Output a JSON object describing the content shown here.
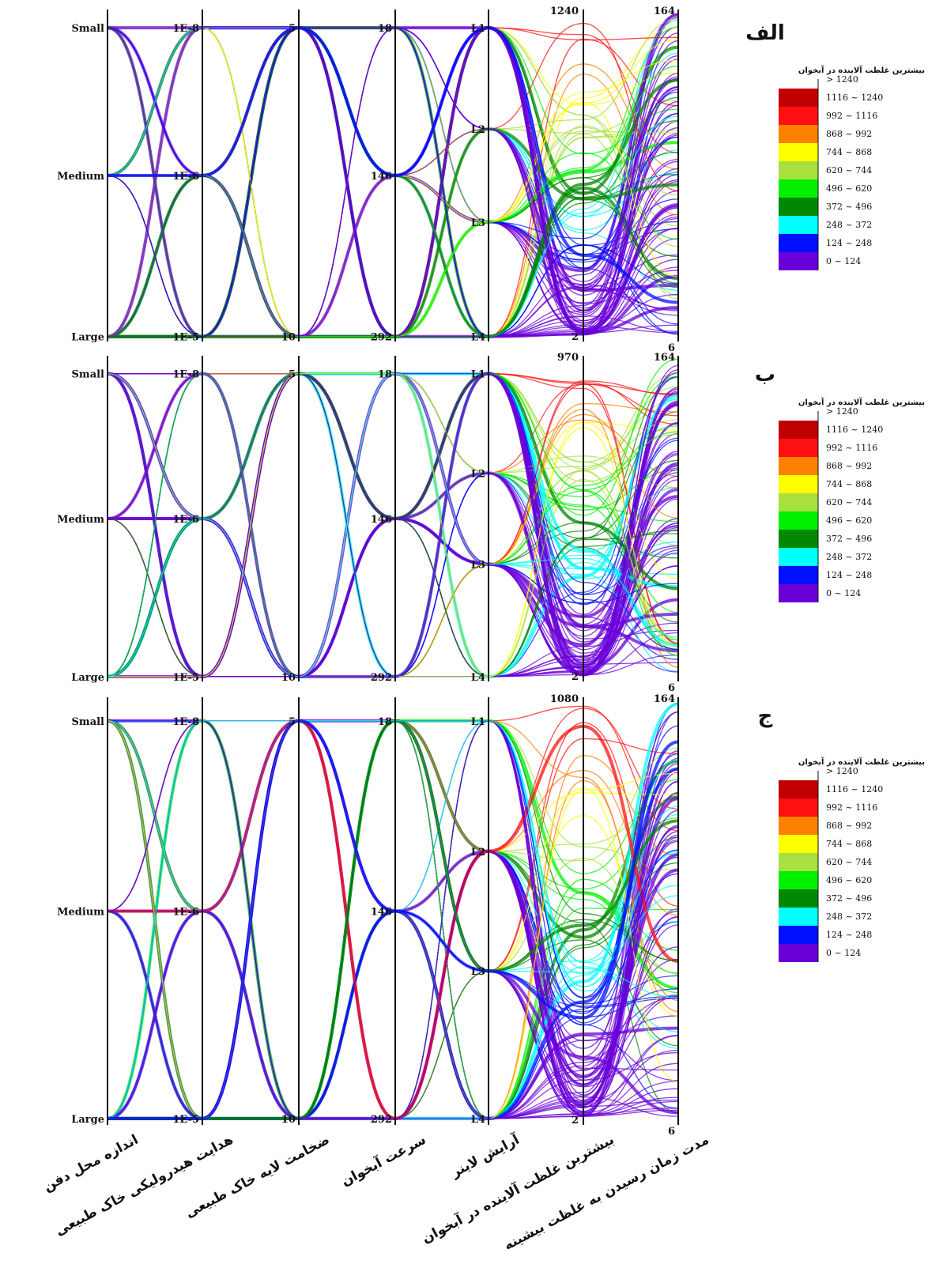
{
  "chart_data": [
    {
      "type": "parallel_coordinates",
      "panel_label": "الف",
      "legend_title": "بیشترین غلظت آلاینده در آبخوان",
      "axes": [
        {
          "name": "اندازه محل دفن",
          "ticks": [
            "Small",
            "Medium",
            "Large"
          ]
        },
        {
          "name": "هدایت هیدرولیکی خاک طبیعی",
          "ticks": [
            "1E-8",
            "1E-6",
            "1E-5"
          ]
        },
        {
          "name": "ضخامت لایه خاک طبیعی",
          "ticks": [
            "5",
            "10"
          ]
        },
        {
          "name": "سرعت آبخوان",
          "ticks": [
            "18",
            "146",
            "292"
          ]
        },
        {
          "name": "آرایش لاینر",
          "ticks": [
            "L1",
            "L2",
            "L3",
            "L4"
          ]
        },
        {
          "name": "بیشترین غلظت آلاینده در آبخوان",
          "ticks": [
            "1240",
            "2"
          ]
        },
        {
          "name": "مدت زمان رسیدن به غلظت بیشینه",
          "ticks": [
            "164",
            "6"
          ]
        }
      ],
      "max_concentration": 1240
    },
    {
      "type": "parallel_coordinates",
      "panel_label": "ب",
      "legend_title": "بیشترین غلظت آلاینده در آبخوان",
      "axes": [
        {
          "name": "اندازه محل دفن",
          "ticks": [
            "Small",
            "Medium",
            "Large"
          ]
        },
        {
          "name": "هدایت هیدرولیکی خاک طبیعی",
          "ticks": [
            "1E-8",
            "1E-6",
            "1E-5"
          ]
        },
        {
          "name": "ضخامت لایه خاک طبیعی",
          "ticks": [
            "5",
            "10"
          ]
        },
        {
          "name": "سرعت آبخوان",
          "ticks": [
            "18",
            "146",
            "292"
          ]
        },
        {
          "name": "آرایش لاینر",
          "ticks": [
            "L1",
            "L2",
            "L3",
            "L4"
          ]
        },
        {
          "name": "بیشترین غلظت آلاینده در آبخوان",
          "ticks": [
            "970",
            "2"
          ]
        },
        {
          "name": "مدت زمان رسیدن به غلظت بیشینه",
          "ticks": [
            "164",
            "6"
          ]
        }
      ],
      "max_concentration": 970
    },
    {
      "type": "parallel_coordinates",
      "panel_label": "ج",
      "legend_title": "بیشترین غلظت آلاینده در آبخوان",
      "axes": [
        {
          "name": "اندازه محل دفن",
          "ticks": [
            "Small",
            "Medium",
            "Large"
          ]
        },
        {
          "name": "هدایت هیدرولیکی خاک طبیعی",
          "ticks": [
            "1E-8",
            "1E-6",
            "1E-5"
          ]
        },
        {
          "name": "ضخامت لایه خاک طبیعی",
          "ticks": [
            "5",
            "10"
          ]
        },
        {
          "name": "سرعت آبخوان",
          "ticks": [
            "18",
            "146",
            "292"
          ]
        },
        {
          "name": "آرایش لاینر",
          "ticks": [
            "L1",
            "L2",
            "L3",
            "L4"
          ]
        },
        {
          "name": "بیشترین غلظت آلاینده در آبخوان",
          "ticks": [
            "1080",
            "2"
          ]
        },
        {
          "name": "مدت زمان رسیدن به غلظت بیشینه",
          "ticks": [
            "164",
            "6"
          ]
        }
      ],
      "max_concentration": 1080
    }
  ],
  "legend_bins": [
    {
      "label": "> 1240",
      "color": "#c00000"
    },
    {
      "label": "1116 ~ 1240",
      "color": "#ff1010"
    },
    {
      "label": "992  ~ 1116",
      "color": "#ff7f00"
    },
    {
      "label": "868  ~ 992",
      "color": "#ffff00"
    },
    {
      "label": "744  ~ 868",
      "color": "#a8e040"
    },
    {
      "label": "620  ~ 744",
      "color": "#00f000"
    },
    {
      "label": "496  ~ 620",
      "color": "#008800"
    },
    {
      "label": "372  ~ 496",
      "color": "#00ffff"
    },
    {
      "label": "248  ~ 372",
      "color": "#0010ff"
    },
    {
      "label": "124  ~ 248",
      "color": "#6a00d8"
    },
    {
      "label": "0    ~ 124",
      "color": "#6a00d8"
    }
  ],
  "bottom_axis_labels": [
    "اندازه محل دفن",
    "هدایت هیدرولیکی خاک طبیعی",
    "ضخامت لایه خاک طبیعی",
    "سرعت آبخوان",
    "آرایش لاینر",
    "بیشترین غلظت آلاینده در آبخوان",
    "مدت زمان رسیدن به غلظت بیشینه"
  ]
}
